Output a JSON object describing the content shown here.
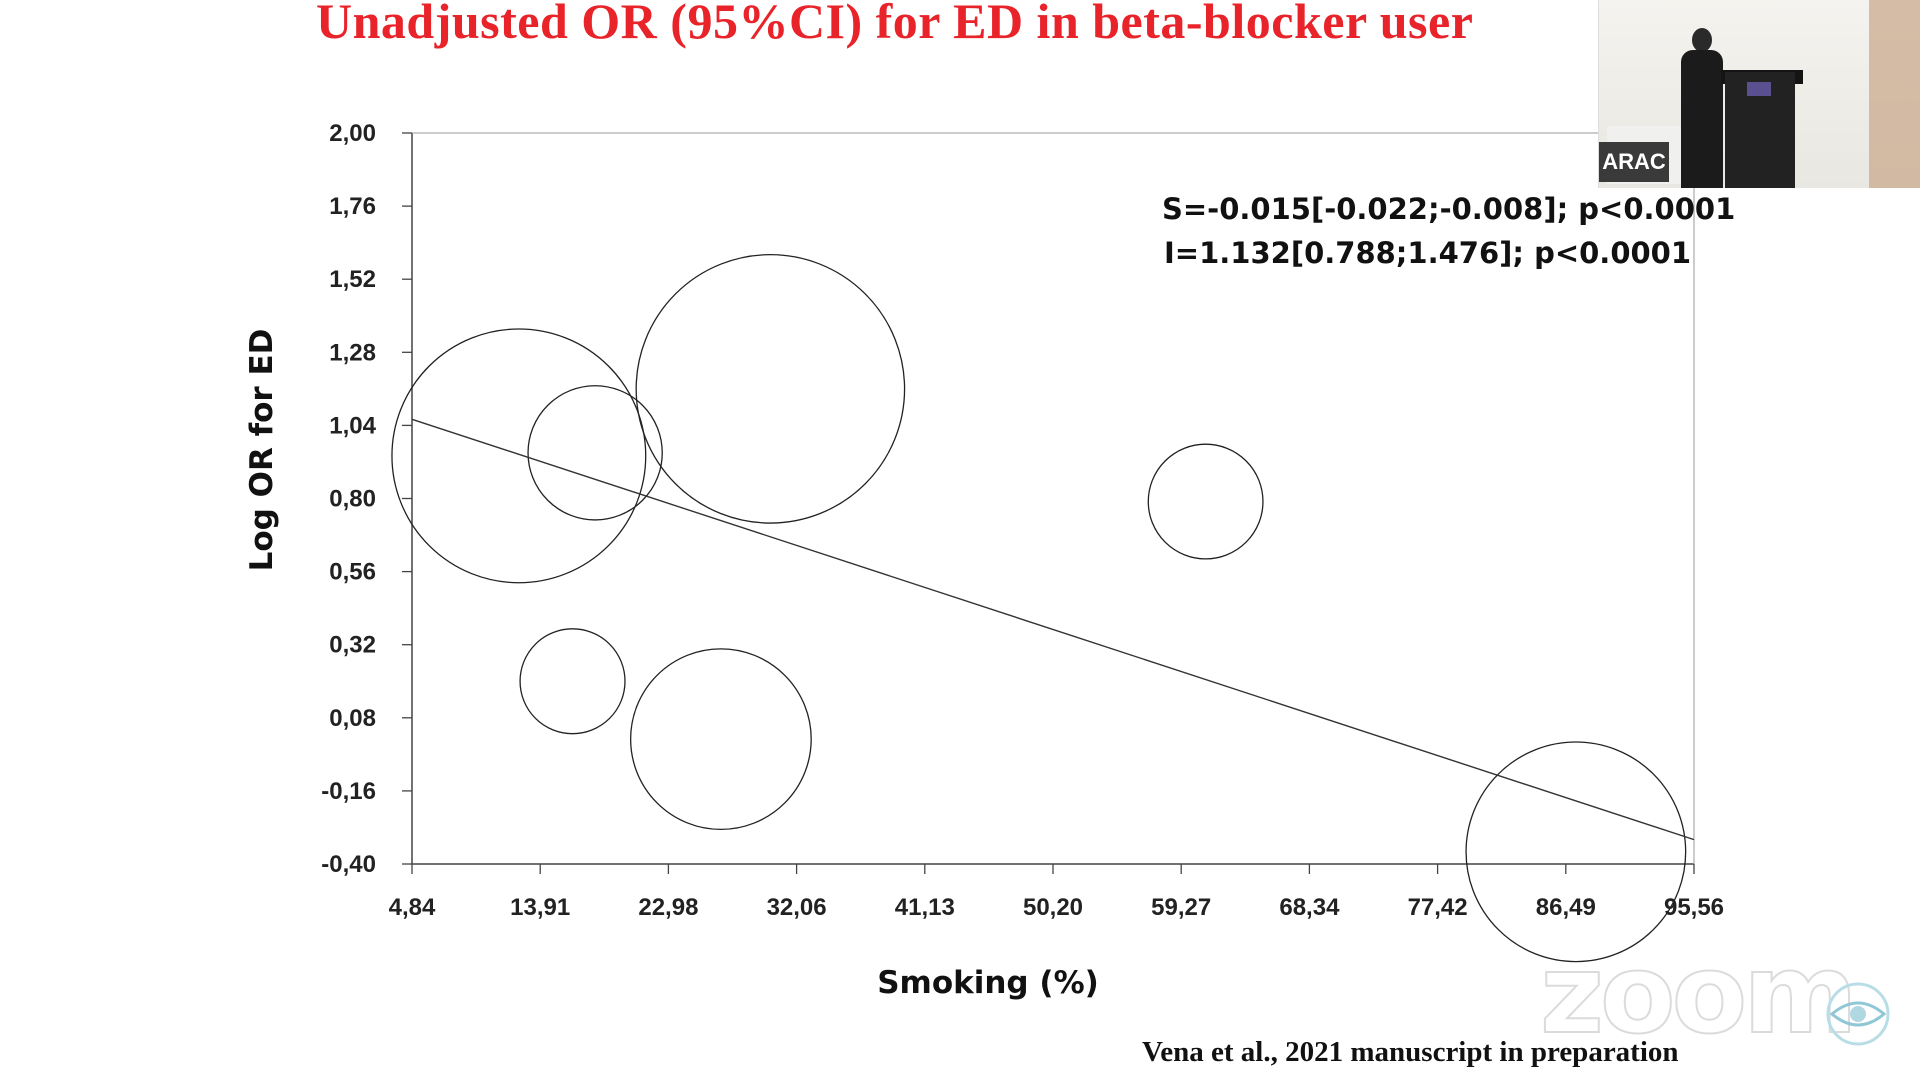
{
  "slide": {
    "title": "Unadjusted OR (95%CI) for ED in beta-blocker user",
    "citation": "Vena  et al., 2021 manuscript in preparation",
    "overlay_badge": "ARAC",
    "watermark": "zoom",
    "title_color": "#e8232a"
  },
  "chart_data": {
    "type": "scatter",
    "variant": "meta-regression bubble plot",
    "xlabel": "Smoking (%)",
    "ylabel": "Log OR for ED",
    "xlim": [
      4.84,
      95.56
    ],
    "ylim": [
      -0.4,
      2.0
    ],
    "x_tick_labels": [
      "4,84",
      "13,91",
      "22,98",
      "32,06",
      "41,13",
      "50,20",
      "59,27",
      "68,34",
      "77,42",
      "86,49",
      "95,56"
    ],
    "y_tick_labels": [
      "2,00",
      "1,76",
      "1,52",
      "1,28",
      "1,04",
      "0,80",
      "0,56",
      "0,32",
      "0,08",
      "-0,16",
      "-0,40"
    ],
    "points": [
      {
        "x": 12.4,
        "y": 0.94,
        "weight": 10.4
      },
      {
        "x": 17.8,
        "y": 0.95,
        "weight": 5.5
      },
      {
        "x": 30.2,
        "y": 1.16,
        "weight": 11.0
      },
      {
        "x": 61.0,
        "y": 0.79,
        "weight": 4.7
      },
      {
        "x": 16.2,
        "y": 0.2,
        "weight": 4.3
      },
      {
        "x": 26.7,
        "y": 0.01,
        "weight": 7.4
      },
      {
        "x": 87.2,
        "y": -0.36,
        "weight": 9.0
      }
    ],
    "regression_line": {
      "x": [
        4.84,
        95.56
      ],
      "y": [
        1.06,
        -0.32
      ]
    },
    "annotations": [
      "S=-0.015[-0.022;-0.008]; p<0.0001",
      "I=1.132[0.788;1.476]; p<0.0001"
    ],
    "grid": false,
    "legend": "none",
    "colors": {
      "marks": "#222222"
    }
  }
}
